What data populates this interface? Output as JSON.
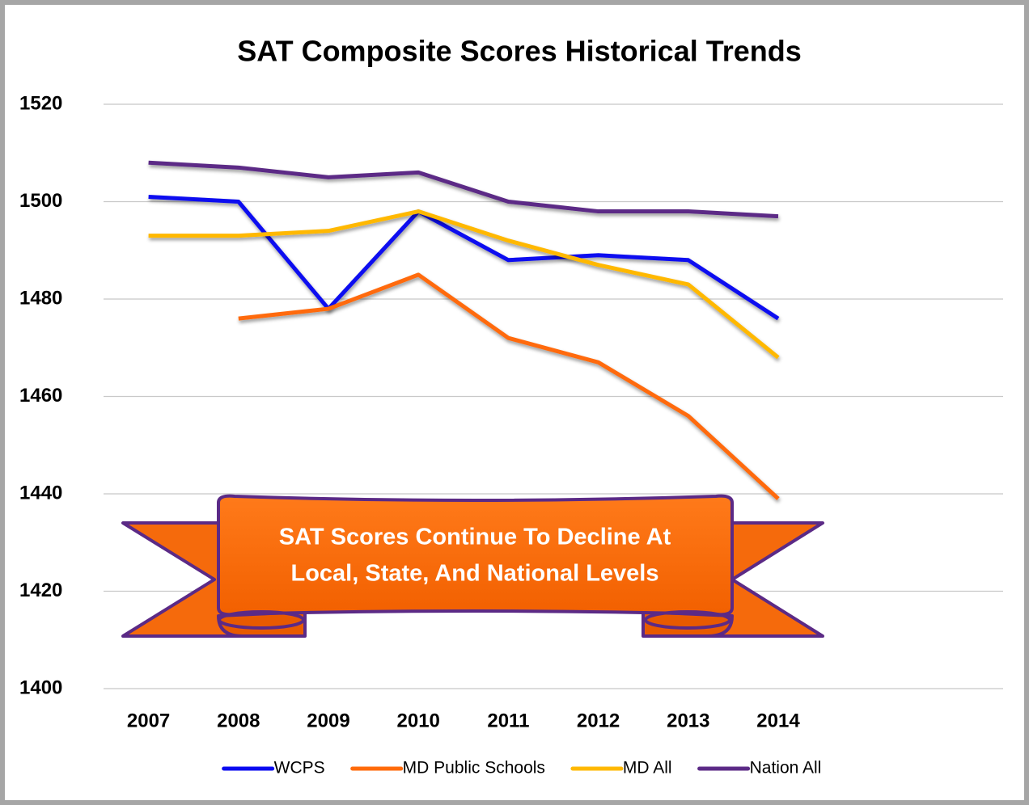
{
  "chart_data": {
    "type": "line",
    "title": "SAT Composite Scores Historical Trends",
    "categories": [
      "2007",
      "2008",
      "2009",
      "2010",
      "2011",
      "2012",
      "2013",
      "2014",
      null,
      null
    ],
    "series": [
      {
        "name": "WCPS",
        "color": "#0a0af0",
        "values": [
          1501,
          1500,
          1478,
          1498,
          1488,
          1489,
          1488,
          1476,
          null,
          null
        ]
      },
      {
        "name": "MD Public Schools",
        "color": "#ff6a0a",
        "values": [
          null,
          1476,
          1478,
          1485,
          1472,
          1467,
          1456,
          1439,
          null,
          null
        ]
      },
      {
        "name": "MD All",
        "color": "#ffb800",
        "values": [
          1493,
          1493,
          1494,
          1498,
          1492,
          1487,
          1483,
          1468,
          null,
          null
        ]
      },
      {
        "name": "Nation All",
        "color": "#5b2a86",
        "values": [
          1508,
          1507,
          1505,
          1506,
          1500,
          1498,
          1498,
          1497,
          null,
          null
        ]
      }
    ],
    "ylim": [
      1400,
      1520
    ],
    "yticks": [
      1400,
      1420,
      1440,
      1460,
      1480,
      1500,
      1520
    ],
    "grid": true,
    "legend": "bottom",
    "annotation": [
      "SAT Scores Continue To Decline At",
      "Local, State, And National Levels"
    ]
  }
}
